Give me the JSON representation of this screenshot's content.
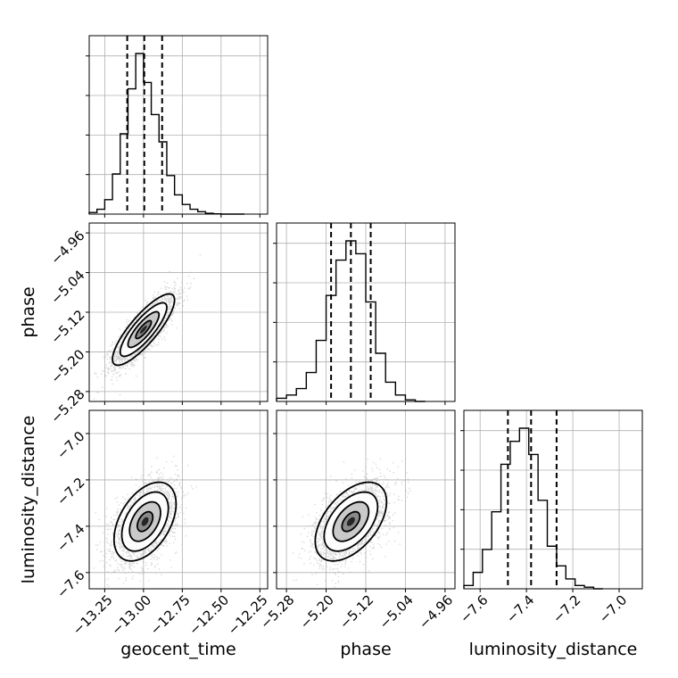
{
  "chart_data": {
    "type": "corner",
    "parameters": [
      {
        "name": "geocent_time",
        "label": "geocent_time",
        "range": [
          -13.35,
          -12.2
        ],
        "ticks": [
          -13.25,
          -13.0,
          -12.75,
          -12.5,
          -12.25
        ],
        "tick_labels": [
          "−13.25",
          "−13.00",
          "−12.75",
          "−12.50",
          "−12.25"
        ],
        "quantiles": [
          -13.105,
          -12.995,
          -12.88
        ],
        "histogram": {
          "bin_edges": [
            -13.35,
            -13.3,
            -13.25,
            -13.2,
            -13.15,
            -13.1,
            -13.05,
            -13.0,
            -12.95,
            -12.9,
            -12.85,
            -12.8,
            -12.75,
            -12.7,
            -12.65,
            -12.6,
            -12.55,
            -12.5,
            -12.45,
            -12.4,
            -12.35
          ],
          "counts": [
            1,
            3,
            9,
            25,
            50,
            78,
            100,
            82,
            62,
            45,
            24,
            12,
            6,
            3,
            1.5,
            0.5,
            0.2,
            0,
            0,
            0
          ]
        }
      },
      {
        "name": "phase",
        "label": "phase",
        "range": [
          -5.3,
          -4.94
        ],
        "ticks": [
          -5.28,
          -5.2,
          -5.12,
          -5.04,
          -4.96
        ],
        "tick_labels": [
          "−5.28",
          "−5.20",
          "−5.12",
          "−5.04",
          "−4.96"
        ],
        "quantiles": [
          -5.19,
          -5.15,
          -5.11
        ],
        "histogram": {
          "bin_edges": [
            -5.3,
            -5.28,
            -5.26,
            -5.24,
            -5.22,
            -5.2,
            -5.18,
            -5.16,
            -5.14,
            -5.12,
            -5.1,
            -5.08,
            -5.06,
            -5.04,
            -5.02,
            -5.0
          ],
          "counts": [
            2,
            4,
            8,
            18,
            38,
            66,
            88,
            100,
            92,
            62,
            30,
            12,
            4,
            1,
            0
          ]
        }
      },
      {
        "name": "luminosity_distance",
        "label": "luminosity_distance",
        "range": [
          -7.67,
          -6.9
        ],
        "ticks": [
          -7.6,
          -7.4,
          -7.2,
          -7.0
        ],
        "tick_labels": [
          "−7.6",
          "−7.4",
          "−7.2",
          "−7.0"
        ],
        "quantiles": [
          -7.48,
          -7.38,
          -7.27
        ],
        "histogram": {
          "bin_edges": [
            -7.67,
            -7.63,
            -7.59,
            -7.55,
            -7.51,
            -7.47,
            -7.43,
            -7.39,
            -7.35,
            -7.31,
            -7.27,
            -7.23,
            -7.19,
            -7.15,
            -7.11,
            -7.07
          ],
          "counts": [
            2,
            10,
            24,
            47,
            76,
            90,
            98,
            82,
            54,
            26,
            14,
            6,
            2,
            1,
            0
          ]
        }
      }
    ],
    "samples_2d": [
      {
        "x": "geocent_time",
        "y": "phase",
        "center": [
          -13.0,
          -5.155
        ],
        "spread": [
          0.1,
          0.036
        ],
        "correlation": 0.83,
        "contour_sigmas": [
          0.5,
          1.0,
          1.5,
          2.0
        ]
      },
      {
        "x": "geocent_time",
        "y": "luminosity_distance",
        "center": [
          -12.99,
          -7.38
        ],
        "spread": [
          0.1,
          0.085
        ],
        "correlation": 0.45,
        "contour_sigmas": [
          0.5,
          1.0,
          1.5,
          2.0
        ]
      },
      {
        "x": "phase",
        "y": "luminosity_distance",
        "center": [
          -5.15,
          -7.38
        ],
        "spread": [
          0.036,
          0.085
        ],
        "correlation": 0.5,
        "contour_sigmas": [
          0.5,
          1.0,
          1.5,
          2.0
        ]
      }
    ],
    "grid": true,
    "colors": {
      "line": "#000000",
      "scatter": "#b4b4b4",
      "grid": "#b0b0b0",
      "hist2d_light": "#bdbdbd",
      "hist2d_mid": "#8a8a8a",
      "hist2d_dark": "#262626"
    }
  }
}
